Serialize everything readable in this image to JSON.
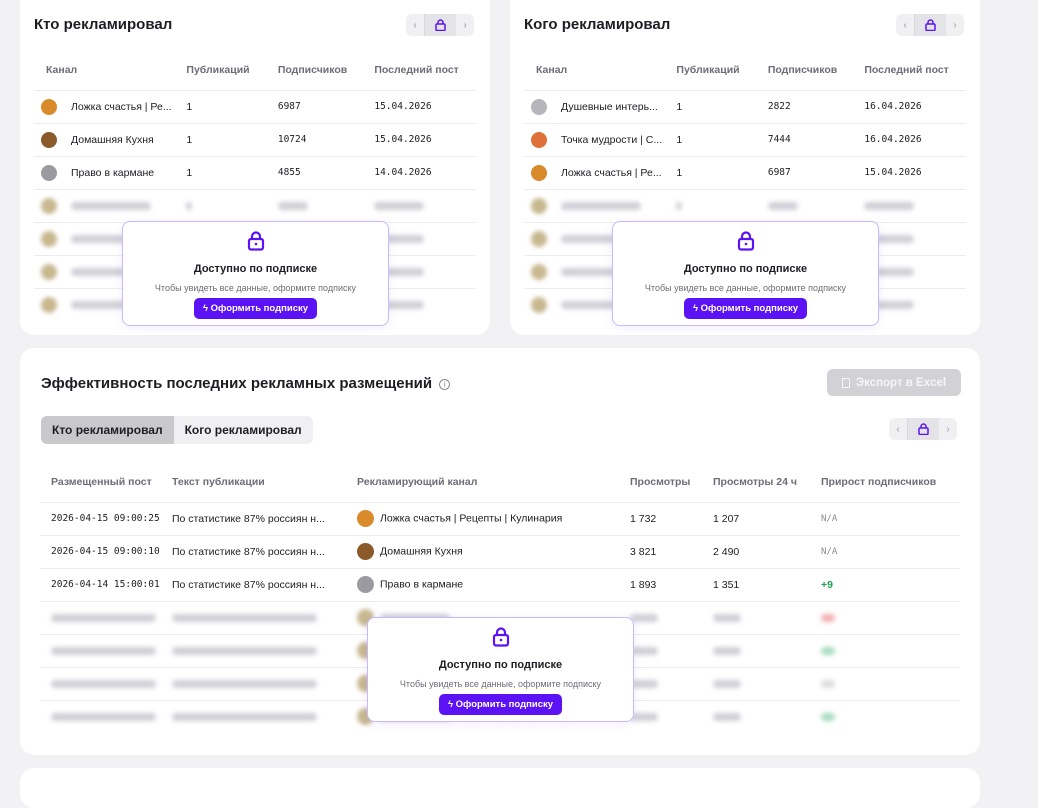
{
  "who_advertised": {
    "title": "Кто рекламировал",
    "columns": [
      "Канал",
      "Публикаций",
      "Подписчиков",
      "Последний пост"
    ],
    "rows": [
      {
        "name": "Ложка счастья | Ре...",
        "pubs": "1",
        "subs": "6987",
        "last": "15.04.2026",
        "color": "#d98a2b"
      },
      {
        "name": "Домашняя Кухня",
        "pubs": "1",
        "subs": "10724",
        "last": "15.04.2026",
        "color": "#8a5a2a"
      },
      {
        "name": "Право в кармане",
        "pubs": "1",
        "subs": "4855",
        "last": "14.04.2026",
        "color": "#9a9aa0"
      }
    ]
  },
  "whom_advertised": {
    "title": "Кого рекламировал",
    "columns": [
      "Канал",
      "Публикаций",
      "Подписчиков",
      "Последний пост"
    ],
    "rows": [
      {
        "name": "Душевные интерь...",
        "pubs": "1",
        "subs": "2822",
        "last": "16.04.2026",
        "color": "#b5b5bb"
      },
      {
        "name": "Точка мудрости | С...",
        "pubs": "1",
        "subs": "7444",
        "last": "16.04.2026",
        "color": "#e0703a"
      },
      {
        "name": "Ложка счастья | Ре...",
        "pubs": "1",
        "subs": "6987",
        "last": "15.04.2026",
        "color": "#d98a2b"
      }
    ]
  },
  "paywall": {
    "title": "Доступно по подписке",
    "text": "Чтобы увидеть все данные, оформите подписку",
    "text_prefix": "Чтобы увидеть все данные, ",
    "text_link": "оформите подписку",
    "button": "Оформить подписку"
  },
  "efficiency": {
    "title": "Эффективность последних рекламных размещений",
    "export": "Экспорт в Excel",
    "tabs": [
      "Кто рекламировал",
      "Кого рекламировал"
    ],
    "columns": [
      "Размещенный пост",
      "Текст публикации",
      "Рекламирующий канал",
      "Просмотры",
      "Просмотры 24 ч",
      "Прирост подписчиков"
    ],
    "rows": [
      {
        "post": "2026-04-15 09:00:25",
        "text": "По статистике 87% россиян н...",
        "channel": "Ложка счастья | Рецепты | Кулинария",
        "views": "1 732",
        "views24": "1 207",
        "growth": "N/A",
        "color": "#d98a2b"
      },
      {
        "post": "2026-04-15 09:00:10",
        "text": "По статистике 87% россиян н...",
        "channel": "Домашняя Кухня",
        "views": "3 821",
        "views24": "2 490",
        "growth": "N/A",
        "color": "#8a5a2a"
      },
      {
        "post": "2026-04-14 15:00:01",
        "text": "По статистике 87% россиян н...",
        "channel": "Право в кармане",
        "views": "1 893",
        "views24": "1 351",
        "growth": "+9",
        "color": "#9a9aa0"
      }
    ]
  },
  "colors": {
    "accent": "#5b12f5",
    "positive": "#1f9d55"
  }
}
